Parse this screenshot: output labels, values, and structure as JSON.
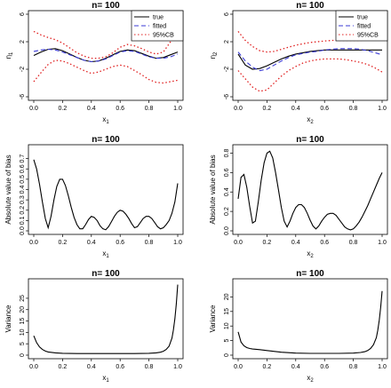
{
  "chart_data": [
    {
      "type": "line",
      "title": "n= 100",
      "xlabel": "x1",
      "xlabel_main": "x",
      "xlabel_sub": "1",
      "ylabel": "η1",
      "ylabel_main": "η",
      "ylabel_sub": "1",
      "xlim": [
        0,
        1
      ],
      "ylim": [
        -6,
        6
      ],
      "xticks": [
        "0.0",
        "0.2",
        "0.4",
        "0.6",
        "0.8",
        "1.0"
      ],
      "yticks": [
        "-6",
        "-2",
        "2",
        "6"
      ],
      "legend": {
        "position": "top-right",
        "entries": [
          "true",
          "fitted",
          "95%CB"
        ]
      },
      "x": [
        0,
        0.05,
        0.1,
        0.15,
        0.2,
        0.25,
        0.3,
        0.35,
        0.4,
        0.45,
        0.5,
        0.55,
        0.6,
        0.65,
        0.7,
        0.75,
        0.8,
        0.85,
        0.9,
        0.95,
        1.0
      ],
      "series": [
        {
          "name": "true",
          "color": "#000000",
          "dash": "solid",
          "values": [
            0,
            0.5,
            0.9,
            1.0,
            0.7,
            0.2,
            -0.3,
            -0.7,
            -0.9,
            -0.8,
            -0.4,
            0.1,
            0.6,
            0.8,
            0.7,
            0.3,
            -0.1,
            -0.4,
            -0.3,
            0.1,
            0.5
          ]
        },
        {
          "name": "fitted",
          "color": "#3b3bd6",
          "dash": "dashed",
          "values": [
            0.6,
            0.8,
            0.9,
            0.8,
            0.5,
            0.1,
            -0.3,
            -0.7,
            -0.9,
            -0.8,
            -0.5,
            0.0,
            0.5,
            0.7,
            0.6,
            0.2,
            -0.2,
            -0.4,
            -0.4,
            -0.2,
            0.2
          ]
        },
        {
          "name": "95%CB upper",
          "color": "#e02020",
          "dash": "dotted",
          "values": [
            3.5,
            3.0,
            2.6,
            2.3,
            1.8,
            1.1,
            0.4,
            -0.1,
            -0.4,
            -0.4,
            -0.2,
            0.4,
            1.2,
            1.6,
            1.4,
            1.0,
            0.5,
            0.2,
            0.5,
            2.0,
            5.6
          ]
        },
        {
          "name": "95%CB lower",
          "color": "#e02020",
          "dash": "dotted",
          "values": [
            -3.8,
            -2.5,
            -1.3,
            -0.7,
            -0.8,
            -1.2,
            -1.7,
            -2.2,
            -2.6,
            -2.4,
            -2.0,
            -1.6,
            -1.4,
            -1.6,
            -2.2,
            -2.8,
            -3.5,
            -3.9,
            -4.0,
            -3.8,
            -3.6
          ]
        }
      ]
    },
    {
      "type": "line",
      "title": "n= 100",
      "xlabel": "x2",
      "xlabel_main": "x",
      "xlabel_sub": "2",
      "ylabel": "η2",
      "ylabel_main": "η",
      "ylabel_sub": "2",
      "xlim": [
        0,
        1
      ],
      "ylim": [
        -6,
        6
      ],
      "xticks": [
        "0.0",
        "0.2",
        "0.4",
        "0.6",
        "0.8",
        "1.0"
      ],
      "yticks": [
        "-6",
        "-2",
        "2",
        "6"
      ],
      "legend": {
        "position": "top-right",
        "entries": [
          "true",
          "fitted",
          "95%CB"
        ]
      },
      "x": [
        0,
        0.05,
        0.1,
        0.15,
        0.2,
        0.25,
        0.3,
        0.35,
        0.4,
        0.45,
        0.5,
        0.55,
        0.6,
        0.65,
        0.7,
        0.75,
        0.8,
        0.85,
        0.9,
        0.95,
        1.0
      ],
      "series": [
        {
          "name": "true",
          "color": "#000000",
          "dash": "solid",
          "values": [
            0.2,
            -1.4,
            -2.0,
            -1.9,
            -1.5,
            -1.0,
            -0.5,
            -0.1,
            0.2,
            0.4,
            0.6,
            0.7,
            0.8,
            0.8,
            0.8,
            0.8,
            0.8,
            0.8,
            0.8,
            0.8,
            0.8
          ]
        },
        {
          "name": "fitted",
          "color": "#3b3bd6",
          "dash": "dashed",
          "values": [
            0.5,
            -0.8,
            -1.7,
            -2.2,
            -2.0,
            -1.4,
            -0.8,
            -0.3,
            0.1,
            0.3,
            0.5,
            0.6,
            0.8,
            0.9,
            1.0,
            1.0,
            1.0,
            0.9,
            0.7,
            0.4,
            0.1
          ]
        },
        {
          "name": "95%CB upper",
          "color": "#e02020",
          "dash": "dotted",
          "values": [
            3.5,
            2.2,
            1.3,
            0.7,
            0.5,
            0.6,
            0.9,
            1.2,
            1.5,
            1.7,
            1.9,
            2.0,
            2.1,
            2.2,
            2.2,
            2.2,
            2.2,
            2.2,
            2.3,
            2.6,
            3.0
          ]
        },
        {
          "name": "95%CB lower",
          "color": "#e02020",
          "dash": "dotted",
          "values": [
            -2.2,
            -3.4,
            -4.6,
            -5.2,
            -5.0,
            -4.0,
            -3.0,
            -2.2,
            -1.6,
            -1.1,
            -0.8,
            -0.6,
            -0.5,
            -0.5,
            -0.5,
            -0.6,
            -0.8,
            -1.0,
            -1.3,
            -1.8,
            -2.4
          ]
        }
      ]
    },
    {
      "type": "line",
      "title": "n= 100",
      "xlabel": "x1",
      "xlabel_main": "x",
      "xlabel_sub": "1",
      "ylabel": "Absolute value of bias",
      "ylabel_main": "Absolute value of bias",
      "ylabel_sub": "",
      "xlim": [
        0,
        1
      ],
      "ylim": [
        0,
        0.8
      ],
      "xticks": [
        "0.0",
        "0.2",
        "0.4",
        "0.6",
        "0.8",
        "1.0"
      ],
      "yticks": [
        "0.0",
        "0.1",
        "0.2",
        "0.3",
        "0.4",
        "0.5",
        "0.6",
        "0.7"
      ],
      "x": [
        0,
        0.02,
        0.04,
        0.06,
        0.08,
        0.1,
        0.12,
        0.14,
        0.16,
        0.18,
        0.2,
        0.22,
        0.24,
        0.26,
        0.28,
        0.3,
        0.32,
        0.34,
        0.36,
        0.38,
        0.4,
        0.42,
        0.44,
        0.46,
        0.48,
        0.5,
        0.52,
        0.54,
        0.56,
        0.58,
        0.6,
        0.62,
        0.64,
        0.66,
        0.68,
        0.7,
        0.72,
        0.74,
        0.76,
        0.78,
        0.8,
        0.82,
        0.84,
        0.86,
        0.88,
        0.9,
        0.92,
        0.94,
        0.96,
        0.98,
        1.0
      ],
      "series": [
        {
          "name": "",
          "color": "#000000",
          "dash": "solid",
          "values": [
            0.69,
            0.6,
            0.45,
            0.28,
            0.12,
            0.03,
            0.14,
            0.3,
            0.43,
            0.5,
            0.5,
            0.44,
            0.34,
            0.23,
            0.13,
            0.06,
            0.02,
            0.02,
            0.06,
            0.11,
            0.14,
            0.13,
            0.1,
            0.05,
            0.02,
            0.01,
            0.04,
            0.09,
            0.14,
            0.18,
            0.2,
            0.19,
            0.16,
            0.12,
            0.07,
            0.03,
            0.04,
            0.08,
            0.12,
            0.14,
            0.14,
            0.12,
            0.08,
            0.04,
            0.02,
            0.03,
            0.06,
            0.1,
            0.17,
            0.28,
            0.46
          ]
        }
      ]
    },
    {
      "type": "line",
      "title": "n= 100",
      "xlabel": "x2",
      "xlabel_main": "x",
      "xlabel_sub": "2",
      "ylabel": "Absolute value of bias",
      "ylabel_main": "Absolute value of bias",
      "ylabel_sub": "",
      "xlim": [
        0,
        1
      ],
      "ylim": [
        0,
        0.85
      ],
      "xticks": [
        "0.0",
        "0.2",
        "0.4",
        "0.6",
        "0.8",
        "1.0"
      ],
      "yticks": [
        "0.0",
        "0.2",
        "0.4",
        "0.6",
        "0.8"
      ],
      "x": [
        0,
        0.02,
        0.04,
        0.06,
        0.08,
        0.1,
        0.12,
        0.14,
        0.16,
        0.18,
        0.2,
        0.22,
        0.24,
        0.26,
        0.28,
        0.3,
        0.32,
        0.34,
        0.36,
        0.38,
        0.4,
        0.42,
        0.44,
        0.46,
        0.48,
        0.5,
        0.52,
        0.54,
        0.56,
        0.58,
        0.6,
        0.62,
        0.64,
        0.66,
        0.68,
        0.7,
        0.72,
        0.74,
        0.76,
        0.78,
        0.8,
        0.82,
        0.84,
        0.86,
        0.88,
        0.9,
        0.92,
        0.94,
        0.96,
        0.98,
        1.0
      ],
      "series": [
        {
          "name": "",
          "color": "#000000",
          "dash": "solid",
          "values": [
            0.33,
            0.55,
            0.58,
            0.45,
            0.25,
            0.08,
            0.1,
            0.3,
            0.52,
            0.7,
            0.8,
            0.82,
            0.75,
            0.6,
            0.42,
            0.24,
            0.1,
            0.04,
            0.1,
            0.18,
            0.24,
            0.27,
            0.27,
            0.24,
            0.18,
            0.11,
            0.05,
            0.02,
            0.05,
            0.1,
            0.14,
            0.17,
            0.18,
            0.18,
            0.16,
            0.12,
            0.08,
            0.04,
            0.02,
            0.01,
            0.02,
            0.05,
            0.09,
            0.14,
            0.2,
            0.26,
            0.33,
            0.4,
            0.47,
            0.54,
            0.6
          ]
        }
      ]
    },
    {
      "type": "line",
      "title": "n= 100",
      "xlabel": "x1",
      "xlabel_main": "x",
      "xlabel_sub": "1",
      "ylabel": "Variance",
      "ylabel_main": "Variance",
      "ylabel_sub": "",
      "xlim": [
        0,
        1
      ],
      "ylim": [
        0,
        32
      ],
      "xticks": [
        "0.0",
        "0.2",
        "0.4",
        "0.6",
        "0.8",
        "1.0"
      ],
      "yticks": [
        "0",
        "5",
        "10",
        "15",
        "20",
        "25"
      ],
      "x": [
        0,
        0.02,
        0.04,
        0.06,
        0.08,
        0.1,
        0.15,
        0.2,
        0.3,
        0.4,
        0.5,
        0.6,
        0.7,
        0.8,
        0.85,
        0.88,
        0.9,
        0.92,
        0.94,
        0.96,
        0.97,
        0.98,
        0.99,
        1.0
      ],
      "series": [
        {
          "name": "",
          "color": "#000000",
          "dash": "solid",
          "values": [
            8.5,
            5.5,
            3.6,
            2.5,
            1.8,
            1.4,
            1.0,
            0.8,
            0.7,
            0.7,
            0.7,
            0.7,
            0.7,
            0.8,
            1.0,
            1.3,
            1.7,
            2.5,
            4.0,
            7.5,
            11.0,
            16.0,
            22.5,
            31.0
          ]
        }
      ]
    },
    {
      "type": "line",
      "title": "n= 100",
      "xlabel": "x2",
      "xlabel_main": "x",
      "xlabel_sub": "2",
      "ylabel": "Variance",
      "ylabel_main": "Variance",
      "ylabel_sub": "",
      "xlim": [
        0,
        1
      ],
      "ylim": [
        0,
        25
      ],
      "xticks": [
        "0.0",
        "0.2",
        "0.4",
        "0.6",
        "0.8",
        "1.0"
      ],
      "yticks": [
        "0",
        "5",
        "10",
        "15",
        "20"
      ],
      "x": [
        0,
        0.02,
        0.04,
        0.06,
        0.08,
        0.1,
        0.15,
        0.2,
        0.3,
        0.4,
        0.5,
        0.6,
        0.7,
        0.8,
        0.85,
        0.88,
        0.9,
        0.92,
        0.94,
        0.96,
        0.97,
        0.98,
        0.99,
        1.0
      ],
      "series": [
        {
          "name": "",
          "color": "#000000",
          "dash": "solid",
          "values": [
            8.0,
            4.5,
            3.2,
            2.6,
            2.3,
            2.1,
            1.9,
            1.6,
            1.0,
            0.7,
            0.6,
            0.6,
            0.6,
            0.7,
            0.9,
            1.2,
            1.6,
            2.3,
            3.6,
            6.0,
            8.5,
            12.0,
            16.5,
            22.0
          ]
        }
      ]
    }
  ]
}
